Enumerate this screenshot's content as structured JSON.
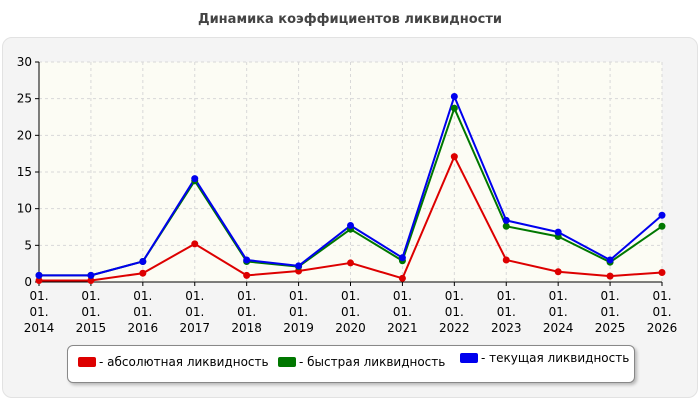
{
  "title": "Динамика коэффициентов ликвидности",
  "chart_data": {
    "type": "line",
    "title": "Динамика коэффициентов ликвидности",
    "xlabel": "",
    "ylabel": "",
    "categories": [
      [
        "01.",
        "01.",
        "2014"
      ],
      [
        "01.",
        "01.",
        "2015"
      ],
      [
        "01.",
        "01.",
        "2016"
      ],
      [
        "01.",
        "01.",
        "2017"
      ],
      [
        "01.",
        "01.",
        "2018"
      ],
      [
        "01.",
        "01.",
        "2019"
      ],
      [
        "01.",
        "01.",
        "2020"
      ],
      [
        "01.",
        "01.",
        "2021"
      ],
      [
        "01.",
        "01.",
        "2022"
      ],
      [
        "01.",
        "01.",
        "2023"
      ],
      [
        "01.",
        "01.",
        "2024"
      ],
      [
        "01.",
        "01.",
        "2025"
      ],
      [
        "01.",
        "01.",
        "2026"
      ]
    ],
    "ylim": [
      0,
      30
    ],
    "yticks": [
      "0",
      "5",
      "10",
      "15",
      "20",
      "25",
      "30"
    ],
    "grid": true,
    "legend_position": "bottom",
    "series": [
      {
        "name": "- абсолютная ликвидность",
        "color": "#dd0000",
        "values": [
          0.2,
          0.2,
          1.2,
          5.2,
          0.9,
          1.5,
          2.6,
          0.5,
          17.1,
          3.0,
          1.4,
          0.8,
          1.3
        ]
      },
      {
        "name": "- быстрая ликвидность",
        "color": "#007700",
        "values": [
          0.9,
          0.9,
          2.8,
          13.8,
          2.8,
          2.1,
          7.2,
          2.9,
          23.7,
          7.6,
          6.2,
          2.7,
          7.6
        ]
      },
      {
        "name": "- текущая ликвидность",
        "color": "#0000ee",
        "values": [
          0.9,
          0.9,
          2.8,
          14.1,
          3.0,
          2.2,
          7.7,
          3.3,
          25.3,
          8.4,
          6.8,
          3.0,
          9.1
        ]
      }
    ]
  }
}
